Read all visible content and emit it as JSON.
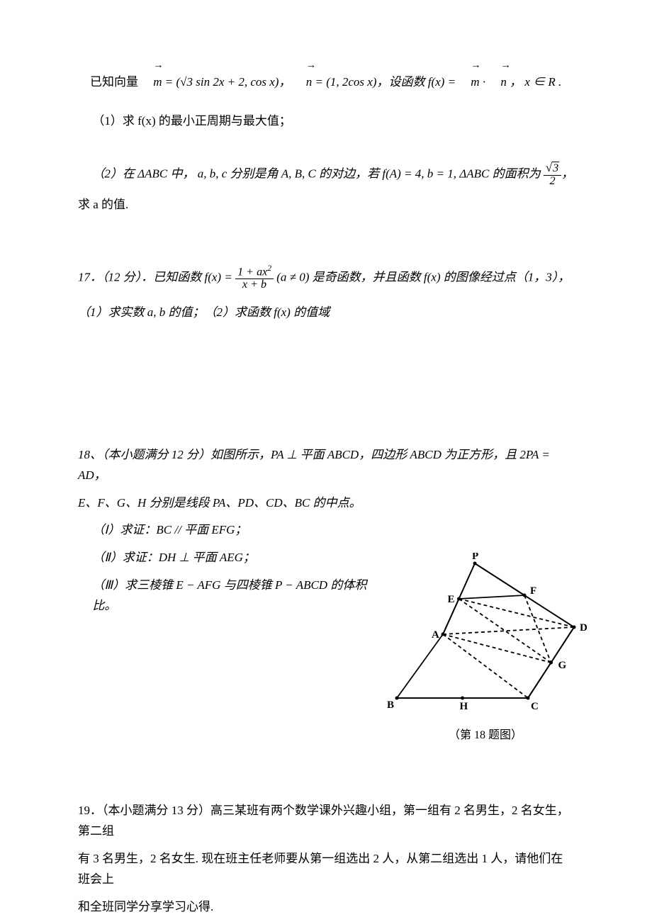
{
  "p16": {
    "line_intro": "已知向量 ",
    "m_eq": " = (√3 sin 2x + 2, cos x)，",
    "n_eq": " = (1, 2cos x)，设函数 ",
    "f_def_lhs": "f(x) = ",
    "dot_end": " ， x ∈ R .",
    "part1": "（1）求 f(x) 的最小正周期与最大值；",
    "part2_a": "（2）在 ΔABC 中，  a, b, c 分别是角 A, B, C 的对边，若 f(A) = 4, b = 1, ΔABC 的面积为",
    "part2_b": "，",
    "part2_tail": "求 a 的值."
  },
  "p17": {
    "head": "17．（12 分）．已知函数 ",
    "f_lhs": "f(x) = ",
    "frac_num": "1 + ax",
    "frac_den": "x + b",
    "cond": " (a ≠ 0) 是奇函数，并且函数 f(x) 的图像经过点（1，3），",
    "sub": "（1）求实数 a, b 的值；（2）求函数 f(x) 的值域"
  },
  "p18": {
    "head": "18、（本小题满分 12 分）如图所示，PA ⊥ 平面 ABCD，四边形 ABCD 为正方形，且 2PA = AD，",
    "line2": "E、F、G、H 分别是线段 PA、PD、CD、BC 的中点。",
    "i": "（Ⅰ）求证：BC // 平面 EFG；",
    "ii": "（Ⅱ）求证：DH ⊥ 平面 AEG；",
    "iii": "（Ⅲ）求三棱锥 E − AFG 与四棱锥 P − ABCD 的体积比。",
    "figcap": "（第 18 题图）"
  },
  "p19": {
    "line1": "19．（本小题满分 13 分）高三某班有两个数学课外兴趣小组，第一组有 2 名男生，2 名女生，第二组",
    "line2": "有 3 名男生，2 名女生. 现在班主任老师要从第一组选出 2 人，从第二组选出 1 人，请他们在班会上",
    "line3": "和全班同学分享学习心得."
  },
  "fig": {
    "labels": {
      "P": "P",
      "E": "E",
      "F": "F",
      "A": "A",
      "D": "D",
      "B": "B",
      "H": "H",
      "C": "C",
      "G": "G"
    },
    "stroke": "#000000",
    "stroke_width": 1.8
  }
}
